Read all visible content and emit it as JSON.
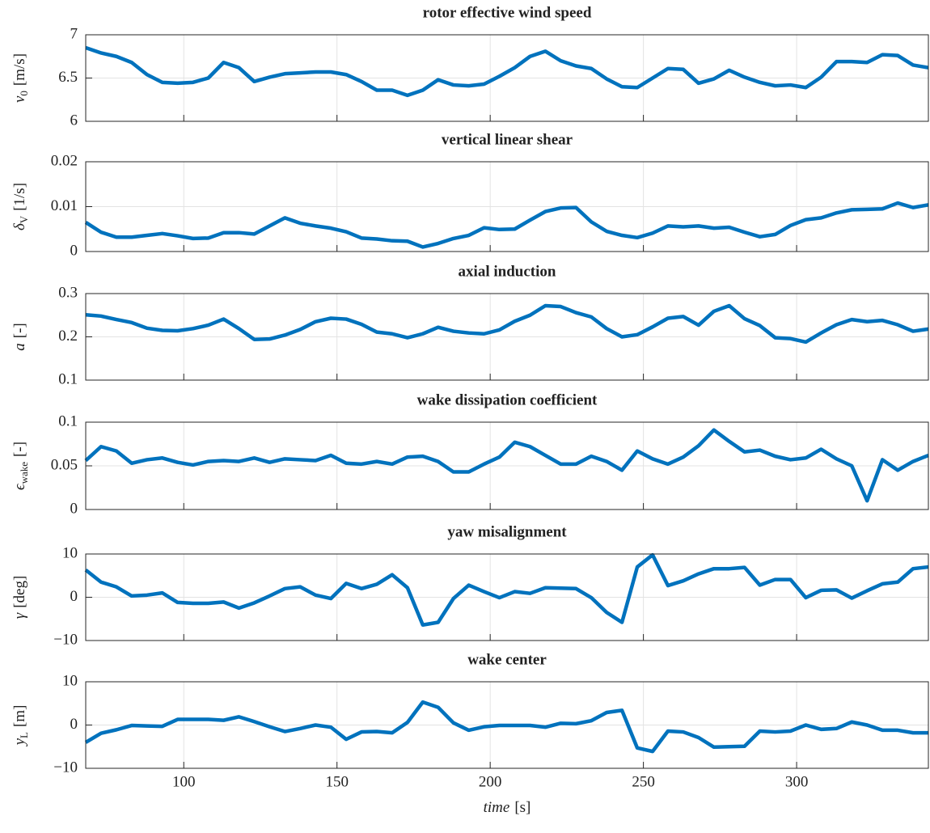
{
  "chart_data": [
    {
      "type": "line",
      "title": "rotor effective wind speed",
      "ylabel": {
        "symbol": "v",
        "subscript": "0",
        "unit": "[m/s]"
      },
      "x": [
        68,
        73,
        78,
        83,
        88,
        93,
        98,
        103,
        108,
        113,
        118,
        123,
        128,
        133,
        138,
        143,
        148,
        153,
        158,
        163,
        168,
        173,
        178,
        183,
        188,
        193,
        198,
        203,
        208,
        213,
        218,
        223,
        228,
        233,
        238,
        243,
        248,
        253,
        258,
        263,
        268,
        273,
        278,
        283,
        288,
        293,
        298,
        303,
        308,
        313,
        318,
        323,
        328,
        333,
        338,
        343
      ],
      "series": [
        {
          "color": "#0072bd",
          "values": [
            6.85,
            6.79,
            6.75,
            6.68,
            6.54,
            6.45,
            6.44,
            6.45,
            6.5,
            6.68,
            6.62,
            6.46,
            6.51,
            6.55,
            6.56,
            6.57,
            6.57,
            6.54,
            6.46,
            6.36,
            6.36,
            6.3,
            6.36,
            6.48,
            6.42,
            6.41,
            6.43,
            6.52,
            6.62,
            6.75,
            6.81,
            6.7,
            6.64,
            6.61,
            6.49,
            6.4,
            6.39,
            6.5,
            6.61,
            6.6,
            6.44,
            6.49,
            6.59,
            6.51,
            6.45,
            6.41,
            6.42,
            6.39,
            6.51,
            6.69,
            6.69,
            6.68,
            6.77,
            6.76,
            6.65,
            6.62
          ]
        }
      ],
      "xlim": [
        68,
        343
      ],
      "xticks": [
        100,
        150,
        200,
        250,
        300
      ],
      "show_xticklabels": false,
      "ylim": [
        6,
        7
      ],
      "yticks": [
        6,
        6.5,
        7
      ],
      "grid": true
    },
    {
      "type": "line",
      "title": "vertical linear shear",
      "ylabel": {
        "symbol": "δ",
        "subscript": "V",
        "unit": "[1/s]"
      },
      "x": [
        68,
        73,
        78,
        83,
        88,
        93,
        98,
        103,
        108,
        113,
        118,
        123,
        128,
        133,
        138,
        143,
        148,
        153,
        158,
        163,
        168,
        173,
        178,
        183,
        188,
        193,
        198,
        203,
        208,
        213,
        218,
        223,
        228,
        233,
        238,
        243,
        248,
        253,
        258,
        263,
        268,
        273,
        278,
        283,
        288,
        293,
        298,
        303,
        308,
        313,
        318,
        323,
        328,
        333,
        338,
        343
      ],
      "series": [
        {
          "color": "#0072bd",
          "values": [
            0.0065,
            0.0043,
            0.0032,
            0.0032,
            0.0036,
            0.004,
            0.0035,
            0.0029,
            0.003,
            0.0042,
            0.0042,
            0.0039,
            0.0057,
            0.0075,
            0.0063,
            0.0057,
            0.0052,
            0.0044,
            0.003,
            0.0028,
            0.0024,
            0.0023,
            0.001,
            0.0018,
            0.0029,
            0.0036,
            0.0053,
            0.0049,
            0.005,
            0.007,
            0.0089,
            0.0097,
            0.0098,
            0.0066,
            0.0045,
            0.0036,
            0.0031,
            0.0041,
            0.0057,
            0.0055,
            0.0057,
            0.0052,
            0.0054,
            0.0043,
            0.0033,
            0.0038,
            0.0058,
            0.0071,
            0.0075,
            0.0086,
            0.0093,
            0.0094,
            0.0095,
            0.0108,
            0.0098,
            0.0104
          ]
        }
      ],
      "xlim": [
        68,
        343
      ],
      "xticks": [
        100,
        150,
        200,
        250,
        300
      ],
      "show_xticklabels": false,
      "ylim": [
        0,
        0.02
      ],
      "yticks": [
        0,
        0.01,
        0.02
      ],
      "grid": true
    },
    {
      "type": "line",
      "title": "axial induction",
      "ylabel": {
        "symbol": "a",
        "unit": "[-]"
      },
      "x": [
        68,
        73,
        78,
        83,
        88,
        93,
        98,
        103,
        108,
        113,
        118,
        123,
        128,
        133,
        138,
        143,
        148,
        153,
        158,
        163,
        168,
        173,
        178,
        183,
        188,
        193,
        198,
        203,
        208,
        213,
        218,
        223,
        228,
        233,
        238,
        243,
        248,
        253,
        258,
        263,
        268,
        273,
        278,
        283,
        288,
        293,
        298,
        303,
        308,
        313,
        318,
        323,
        328,
        333,
        338,
        343
      ],
      "series": [
        {
          "color": "#0072bd",
          "values": [
            0.251,
            0.248,
            0.24,
            0.233,
            0.22,
            0.215,
            0.214,
            0.219,
            0.227,
            0.241,
            0.219,
            0.194,
            0.195,
            0.204,
            0.217,
            0.235,
            0.243,
            0.241,
            0.229,
            0.211,
            0.207,
            0.198,
            0.207,
            0.222,
            0.213,
            0.209,
            0.207,
            0.216,
            0.236,
            0.25,
            0.272,
            0.27,
            0.256,
            0.246,
            0.219,
            0.2,
            0.205,
            0.223,
            0.243,
            0.247,
            0.227,
            0.259,
            0.272,
            0.242,
            0.226,
            0.198,
            0.196,
            0.188,
            0.209,
            0.228,
            0.24,
            0.235,
            0.238,
            0.228,
            0.213,
            0.218
          ]
        }
      ],
      "xlim": [
        68,
        343
      ],
      "xticks": [
        100,
        150,
        200,
        250,
        300
      ],
      "show_xticklabels": false,
      "ylim": [
        0.1,
        0.3
      ],
      "yticks": [
        0.1,
        0.2,
        0.3
      ],
      "grid": true
    },
    {
      "type": "line",
      "title": "wake dissipation coefficient",
      "ylabel": {
        "symbol": "ϵ",
        "subscript": "wake",
        "unit": "[-]"
      },
      "x": [
        68,
        73,
        78,
        83,
        88,
        93,
        98,
        103,
        108,
        113,
        118,
        123,
        128,
        133,
        138,
        143,
        148,
        153,
        158,
        163,
        168,
        173,
        178,
        183,
        188,
        193,
        198,
        203,
        208,
        213,
        218,
        223,
        228,
        233,
        238,
        243,
        248,
        253,
        258,
        263,
        268,
        273,
        278,
        283,
        288,
        293,
        298,
        303,
        308,
        313,
        318,
        323,
        328,
        333,
        338,
        343
      ],
      "series": [
        {
          "color": "#0072bd",
          "values": [
            0.056,
            0.072,
            0.067,
            0.053,
            0.057,
            0.059,
            0.054,
            0.051,
            0.055,
            0.056,
            0.055,
            0.059,
            0.054,
            0.058,
            0.057,
            0.056,
            0.062,
            0.053,
            0.052,
            0.055,
            0.052,
            0.06,
            0.061,
            0.055,
            0.043,
            0.043,
            0.052,
            0.06,
            0.077,
            0.072,
            0.062,
            0.052,
            0.052,
            0.061,
            0.055,
            0.045,
            0.067,
            0.058,
            0.052,
            0.06,
            0.073,
            0.091,
            0.078,
            0.066,
            0.068,
            0.061,
            0.057,
            0.059,
            0.069,
            0.058,
            0.05,
            0.01,
            0.057,
            0.045,
            0.055,
            0.062
          ]
        }
      ],
      "xlim": [
        68,
        343
      ],
      "xticks": [
        100,
        150,
        200,
        250,
        300
      ],
      "show_xticklabels": false,
      "ylim": [
        0,
        0.1
      ],
      "yticks": [
        0,
        0.05,
        0.1
      ],
      "grid": true
    },
    {
      "type": "line",
      "title": "yaw misalignment",
      "ylabel": {
        "symbol": "γ",
        "unit": "[deg]"
      },
      "x": [
        68,
        73,
        78,
        83,
        88,
        93,
        98,
        103,
        108,
        113,
        118,
        123,
        128,
        133,
        138,
        143,
        148,
        153,
        158,
        163,
        168,
        173,
        178,
        183,
        188,
        193,
        198,
        203,
        208,
        213,
        218,
        223,
        228,
        233,
        238,
        243,
        248,
        253,
        258,
        263,
        268,
        273,
        278,
        283,
        288,
        293,
        298,
        303,
        308,
        313,
        318,
        323,
        328,
        333,
        338,
        343
      ],
      "series": [
        {
          "color": "#0072bd",
          "values": [
            6.3,
            3.5,
            2.4,
            0.3,
            0.5,
            1.0,
            -1.2,
            -1.4,
            -1.4,
            -1.1,
            -2.5,
            -1.3,
            0.3,
            2.0,
            2.4,
            0.5,
            -0.3,
            3.2,
            2.0,
            3.0,
            5.2,
            2.2,
            -6.4,
            -5.8,
            -0.3,
            2.8,
            1.3,
            -0.1,
            1.3,
            0.9,
            2.2,
            2.1,
            2.0,
            -0.1,
            -3.5,
            -5.8,
            7.0,
            9.8,
            2.7,
            3.8,
            5.4,
            6.6,
            6.6,
            6.9,
            2.8,
            4.1,
            4.1,
            -0.1,
            1.6,
            1.7,
            -0.2,
            1.5,
            3.1,
            3.5,
            6.6,
            7.0
          ]
        }
      ],
      "xlim": [
        68,
        343
      ],
      "xticks": [
        100,
        150,
        200,
        250,
        300
      ],
      "show_xticklabels": false,
      "ylim": [
        -10,
        10
      ],
      "yticks": [
        {
          "value": -10,
          "label": "−10"
        },
        0,
        10
      ],
      "grid": true
    },
    {
      "type": "line",
      "title": "wake center",
      "ylabel": {
        "symbol": "y",
        "subscript": "L",
        "unit": "[m]"
      },
      "xlabel": {
        "symbol": "time",
        "unit": "[s]"
      },
      "x": [
        68,
        73,
        78,
        83,
        88,
        93,
        98,
        103,
        108,
        113,
        118,
        123,
        128,
        133,
        138,
        143,
        148,
        153,
        158,
        163,
        168,
        173,
        178,
        183,
        188,
        193,
        198,
        203,
        208,
        213,
        218,
        223,
        228,
        233,
        238,
        243,
        248,
        253,
        258,
        263,
        268,
        273,
        278,
        283,
        288,
        293,
        298,
        303,
        308,
        313,
        318,
        323,
        328,
        333,
        338,
        343
      ],
      "series": [
        {
          "color": "#0072bd",
          "values": [
            -4.0,
            -1.9,
            -1.1,
            -0.1,
            -0.2,
            -0.3,
            1.3,
            1.3,
            1.3,
            1.1,
            1.9,
            0.8,
            -0.4,
            -1.5,
            -0.8,
            0.0,
            -0.5,
            -3.3,
            -1.6,
            -1.5,
            -1.8,
            0.6,
            5.3,
            4.1,
            0.5,
            -1.2,
            -0.4,
            -0.1,
            -0.1,
            -0.1,
            -0.5,
            0.4,
            0.3,
            1.0,
            2.9,
            3.4,
            -5.3,
            -6.1,
            -1.4,
            -1.6,
            -2.9,
            -5.1,
            -5.0,
            -4.9,
            -1.4,
            -1.6,
            -1.4,
            0.0,
            -1.0,
            -0.8,
            0.7,
            0.0,
            -1.2,
            -1.2,
            -1.8,
            -1.8
          ]
        }
      ],
      "xlim": [
        68,
        343
      ],
      "xticks": [
        100,
        150,
        200,
        250,
        300
      ],
      "show_xticklabels": true,
      "ylim": [
        -10,
        10
      ],
      "yticks": [
        {
          "value": -10,
          "label": "−10"
        },
        0,
        10
      ],
      "grid": true
    }
  ]
}
